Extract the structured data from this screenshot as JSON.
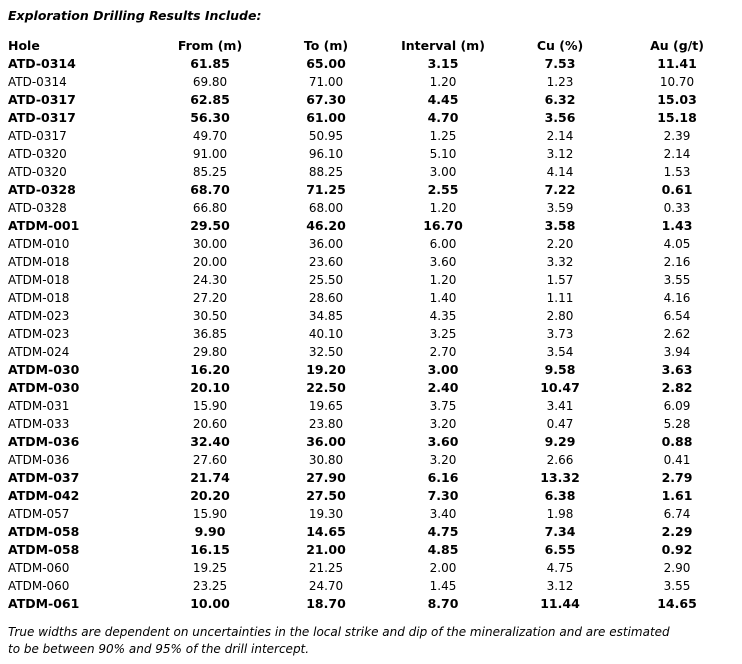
{
  "header": {
    "title": "Exploration Drilling Results Include:"
  },
  "table": {
    "columns": [
      "Hole",
      "From (m)",
      "To (m)",
      "Interval (m)",
      "Cu (%)",
      "Au (g/t)"
    ],
    "rows": [
      {
        "cells": [
          "ATD-0314",
          "61.85",
          "65.00",
          "3.15",
          "7.53",
          "11.41"
        ],
        "bold": true
      },
      {
        "cells": [
          "ATD-0314",
          "69.80",
          "71.00",
          "1.20",
          "1.23",
          "10.70"
        ],
        "bold": false
      },
      {
        "cells": [
          "ATD-0317",
          "62.85",
          "67.30",
          "4.45",
          "6.32",
          "15.03"
        ],
        "bold": true
      },
      {
        "cells": [
          "ATD-0317",
          "56.30",
          "61.00",
          "4.70",
          "3.56",
          "15.18"
        ],
        "bold": true
      },
      {
        "cells": [
          "ATD-0317",
          "49.70",
          "50.95",
          "1.25",
          "2.14",
          "2.39"
        ],
        "bold": false
      },
      {
        "cells": [
          "ATD-0320",
          "91.00",
          "96.10",
          "5.10",
          "3.12",
          "2.14"
        ],
        "bold": false
      },
      {
        "cells": [
          "ATD-0320",
          "85.25",
          "88.25",
          "3.00",
          "4.14",
          "1.53"
        ],
        "bold": false
      },
      {
        "cells": [
          "ATD-0328",
          "68.70",
          "71.25",
          "2.55",
          "7.22",
          "0.61"
        ],
        "bold": true
      },
      {
        "cells": [
          "ATD-0328",
          "66.80",
          "68.00",
          "1.20",
          "3.59",
          "0.33"
        ],
        "bold": false
      },
      {
        "cells": [
          "ATDM-001",
          "29.50",
          "46.20",
          "16.70",
          "3.58",
          "1.43"
        ],
        "bold": true
      },
      {
        "cells": [
          "ATDM-010",
          "30.00",
          "36.00",
          "6.00",
          "2.20",
          "4.05"
        ],
        "bold": false
      },
      {
        "cells": [
          "ATDM-018",
          "20.00",
          "23.60",
          "3.60",
          "3.32",
          "2.16"
        ],
        "bold": false
      },
      {
        "cells": [
          "ATDM-018",
          "24.30",
          "25.50",
          "1.20",
          "1.57",
          "3.55"
        ],
        "bold": false
      },
      {
        "cells": [
          "ATDM-018",
          "27.20",
          "28.60",
          "1.40",
          "1.11",
          "4.16"
        ],
        "bold": false
      },
      {
        "cells": [
          "ATDM-023",
          "30.50",
          "34.85",
          "4.35",
          "2.80",
          "6.54"
        ],
        "bold": false
      },
      {
        "cells": [
          "ATDM-023",
          "36.85",
          "40.10",
          "3.25",
          "3.73",
          "2.62"
        ],
        "bold": false
      },
      {
        "cells": [
          "ATDM-024",
          "29.80",
          "32.50",
          "2.70",
          "3.54",
          "3.94"
        ],
        "bold": false
      },
      {
        "cells": [
          "ATDM-030",
          "16.20",
          "19.20",
          "3.00",
          "9.58",
          "3.63"
        ],
        "bold": true
      },
      {
        "cells": [
          "ATDM-030",
          "20.10",
          "22.50",
          "2.40",
          "10.47",
          "2.82"
        ],
        "bold": true
      },
      {
        "cells": [
          "ATDM-031",
          "15.90",
          "19.65",
          "3.75",
          "3.41",
          "6.09"
        ],
        "bold": false
      },
      {
        "cells": [
          "ATDM-033",
          "20.60",
          "23.80",
          "3.20",
          "0.47",
          "5.28"
        ],
        "bold": false
      },
      {
        "cells": [
          "ATDM-036",
          "32.40",
          "36.00",
          "3.60",
          "9.29",
          "0.88"
        ],
        "bold": true
      },
      {
        "cells": [
          "ATDM-036",
          "27.60",
          "30.80",
          "3.20",
          "2.66",
          "0.41"
        ],
        "bold": false
      },
      {
        "cells": [
          "ATDM-037",
          "21.74",
          "27.90",
          "6.16",
          "13.32",
          "2.79"
        ],
        "bold": true
      },
      {
        "cells": [
          "ATDM-042",
          "20.20",
          "27.50",
          "7.30",
          "6.38",
          "1.61"
        ],
        "bold": true
      },
      {
        "cells": [
          "ATDM-057",
          "15.90",
          "19.30",
          "3.40",
          "1.98",
          "6.74"
        ],
        "bold": false
      },
      {
        "cells": [
          "ATDM-058",
          "9.90",
          "14.65",
          "4.75",
          "7.34",
          "2.29"
        ],
        "bold": true
      },
      {
        "cells": [
          "ATDM-058",
          "16.15",
          "21.00",
          "4.85",
          "6.55",
          "0.92"
        ],
        "bold": true
      },
      {
        "cells": [
          "ATDM-060",
          "19.25",
          "21.25",
          "2.00",
          "4.75",
          "2.90"
        ],
        "bold": false
      },
      {
        "cells": [
          "ATDM-060",
          "23.25",
          "24.70",
          "1.45",
          "3.12",
          "3.55"
        ],
        "bold": false
      },
      {
        "cells": [
          "ATDM-061",
          "10.00",
          "18.70",
          "8.70",
          "11.44",
          "14.65"
        ],
        "bold": true
      }
    ]
  },
  "footnote": {
    "lines": [
      "True widths are dependent on uncertainties in the local strike and dip of the mineralization and are estimated",
      "to be between 90% and 95% of the drill intercept."
    ]
  }
}
